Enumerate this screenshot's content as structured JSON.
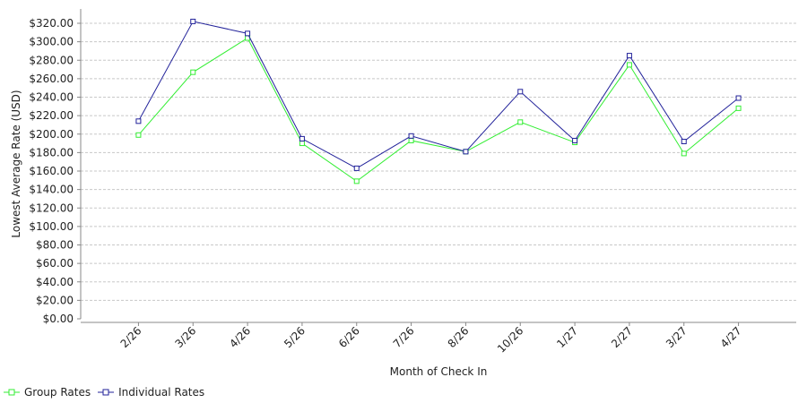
{
  "chart_data": {
    "type": "line",
    "xlabel": "Month of Check In",
    "ylabel": "Lowest Average Rate (USD)",
    "categories": [
      "2/26",
      "3/26",
      "4/26",
      "5/26",
      "6/26",
      "7/26",
      "8/26",
      "10/26",
      "1/27",
      "2/27",
      "3/27",
      "4/27"
    ],
    "ylim": [
      0,
      320
    ],
    "ytick_step": 20,
    "ytick_labels": [
      "$0.00",
      "$20.00",
      "$40.00",
      "$60.00",
      "$80.00",
      "$100.00",
      "$120.00",
      "$140.00",
      "$160.00",
      "$180.00",
      "$200.00",
      "$220.00",
      "$240.00",
      "$260.00",
      "$280.00",
      "$300.00",
      "$320.00"
    ],
    "grid": "horizontal dashed",
    "legend_position": "bottom-left",
    "series": [
      {
        "name": "Group Rates",
        "color": "#33ee33",
        "marker": "square",
        "values": [
          199,
          267,
          304,
          190,
          149,
          193,
          181,
          213,
          191,
          275,
          179,
          228
        ]
      },
      {
        "name": "Individual Rates",
        "color": "#22229a",
        "marker": "square",
        "values": [
          214,
          322,
          309,
          195,
          163,
          198,
          181,
          246,
          193,
          285,
          192,
          239
        ]
      }
    ]
  }
}
